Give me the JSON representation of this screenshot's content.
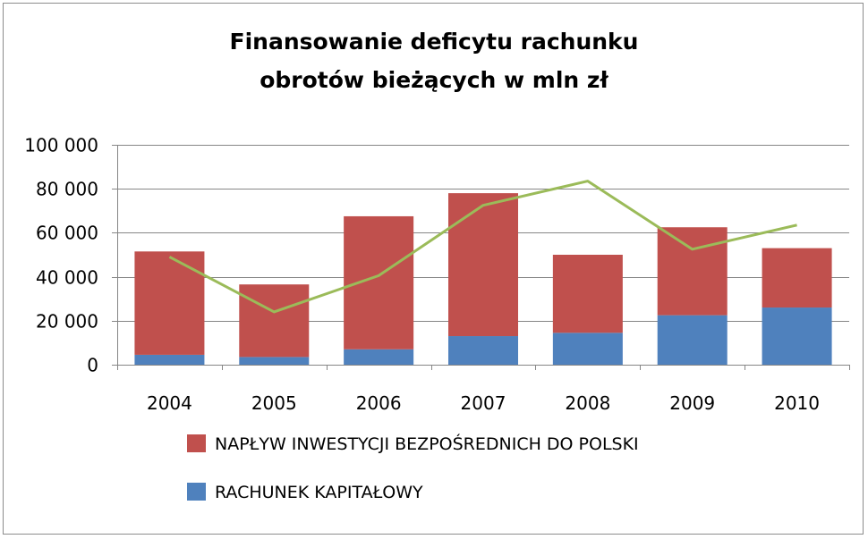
{
  "chart_data": {
    "type": "bar",
    "stacked": true,
    "title_lines": [
      "Finansowanie deficytu rachunku",
      "obrotów bieżących w mln zł"
    ],
    "categories": [
      "2004",
      "2005",
      "2006",
      "2007",
      "2008",
      "2009",
      "2010"
    ],
    "ylim": [
      0,
      100000
    ],
    "yticks": [
      0,
      20000,
      40000,
      60000,
      80000,
      100000
    ],
    "ytick_labels": [
      "0",
      "20 000",
      "40 000",
      "60 000",
      "80 000",
      "100 000"
    ],
    "grid": true,
    "legend_position": "bottom",
    "series": [
      {
        "name": "RACHUNEK KAPITAŁOWY",
        "color": "#4f81bd",
        "values": [
          4500,
          3500,
          7000,
          13000,
          14500,
          22500,
          26000
        ]
      },
      {
        "name": "NAPŁYW INWESTYCJI BEZPOŚREDNICH DO POLSKI",
        "color": "#c0504d",
        "values": [
          47000,
          33000,
          60500,
          65000,
          35500,
          40000,
          27000
        ]
      }
    ],
    "line_series": {
      "color": "#9bbb59",
      "values": [
        49000,
        24000,
        40500,
        72500,
        83500,
        52500,
        63500
      ]
    },
    "legend_order": [
      1,
      0
    ]
  }
}
